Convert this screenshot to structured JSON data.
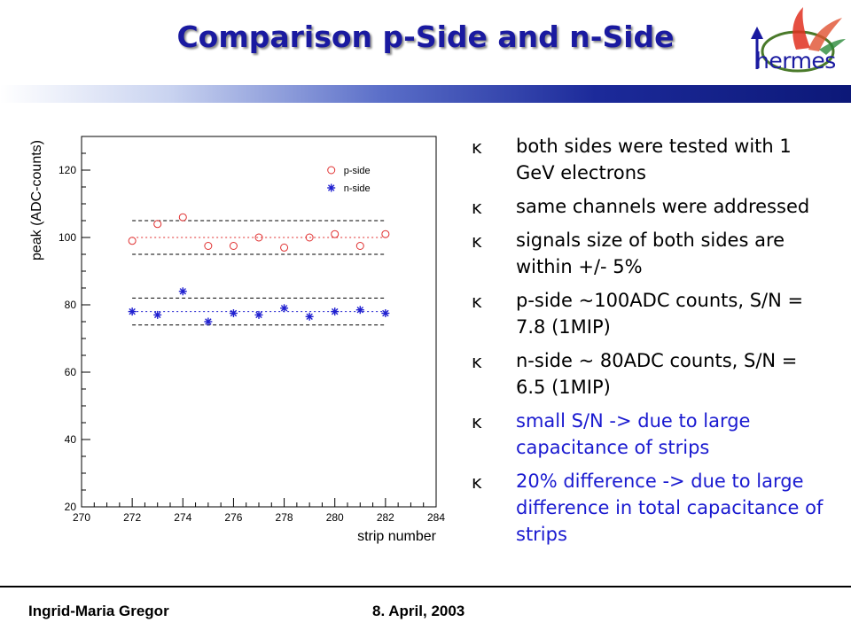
{
  "slide": {
    "title": "Comparison p-Side and n-Side",
    "logo_text": "hermes",
    "footer_left": "Ingrid-Maria Gregor",
    "footer_right": "8. April, 2003"
  },
  "bullets": [
    {
      "text": "both sides were tested with 1 GeV electrons",
      "color": "#000000"
    },
    {
      "text": "same channels were addressed",
      "color": "#000000"
    },
    {
      "text": "signals size of both sides are within +/- 5%",
      "color": "#000000"
    },
    {
      "text": "p-side ~100ADC counts, S/N = 7.8 (1MIP)",
      "color": "#000000"
    },
    {
      "text": "n-side ~ 80ADC counts, S/N = 6.5 (1MIP)",
      "color": "#000000"
    },
    {
      "text": "small S/N -> due to large capacitance of strips",
      "color": "#1a1ad0"
    },
    {
      "text": "20% difference -> due to large difference in total capacitance of strips",
      "color": "#1a1ad0"
    }
  ],
  "bullet_marker": "ĸ",
  "chart_data": {
    "type": "scatter",
    "xlabel": "strip number",
    "ylabel": "peak (ADC-counts)",
    "xlim": [
      270,
      284
    ],
    "ylim": [
      20,
      130
    ],
    "xticks": [
      270,
      272,
      274,
      276,
      278,
      280,
      282,
      284
    ],
    "yticks": [
      20,
      40,
      60,
      80,
      100,
      120
    ],
    "legend_position": "top-right",
    "grid": false,
    "series": [
      {
        "name": "p-side",
        "marker": "circle",
        "color": "#e03030",
        "x": [
          272,
          273,
          274,
          275,
          276,
          277,
          278,
          279,
          280,
          281,
          282
        ],
        "y": [
          99,
          104,
          106,
          97.5,
          97.5,
          100,
          97,
          100,
          101,
          97.5,
          101
        ]
      },
      {
        "name": "n-side",
        "marker": "star",
        "color": "#2020d0",
        "x": [
          272,
          273,
          274,
          275,
          276,
          277,
          278,
          279,
          280,
          281,
          282
        ],
        "y": [
          78,
          77,
          84,
          75,
          77.5,
          77,
          79,
          76.5,
          78,
          78.5,
          77.5
        ]
      }
    ],
    "reference_lines": [
      {
        "y": 105,
        "style": "dashed",
        "color": "#000000",
        "x_range": [
          272,
          282
        ]
      },
      {
        "y": 100,
        "style": "dotted",
        "color": "#e03030",
        "x_range": [
          272,
          282
        ]
      },
      {
        "y": 95,
        "style": "dashed",
        "color": "#000000",
        "x_range": [
          272,
          282
        ]
      },
      {
        "y": 82,
        "style": "dashed",
        "color": "#000000",
        "x_range": [
          272,
          282
        ]
      },
      {
        "y": 78,
        "style": "dotted",
        "color": "#2020d0",
        "x_range": [
          272,
          282
        ]
      },
      {
        "y": 74,
        "style": "dashed",
        "color": "#000000",
        "x_range": [
          272,
          282
        ]
      }
    ]
  }
}
